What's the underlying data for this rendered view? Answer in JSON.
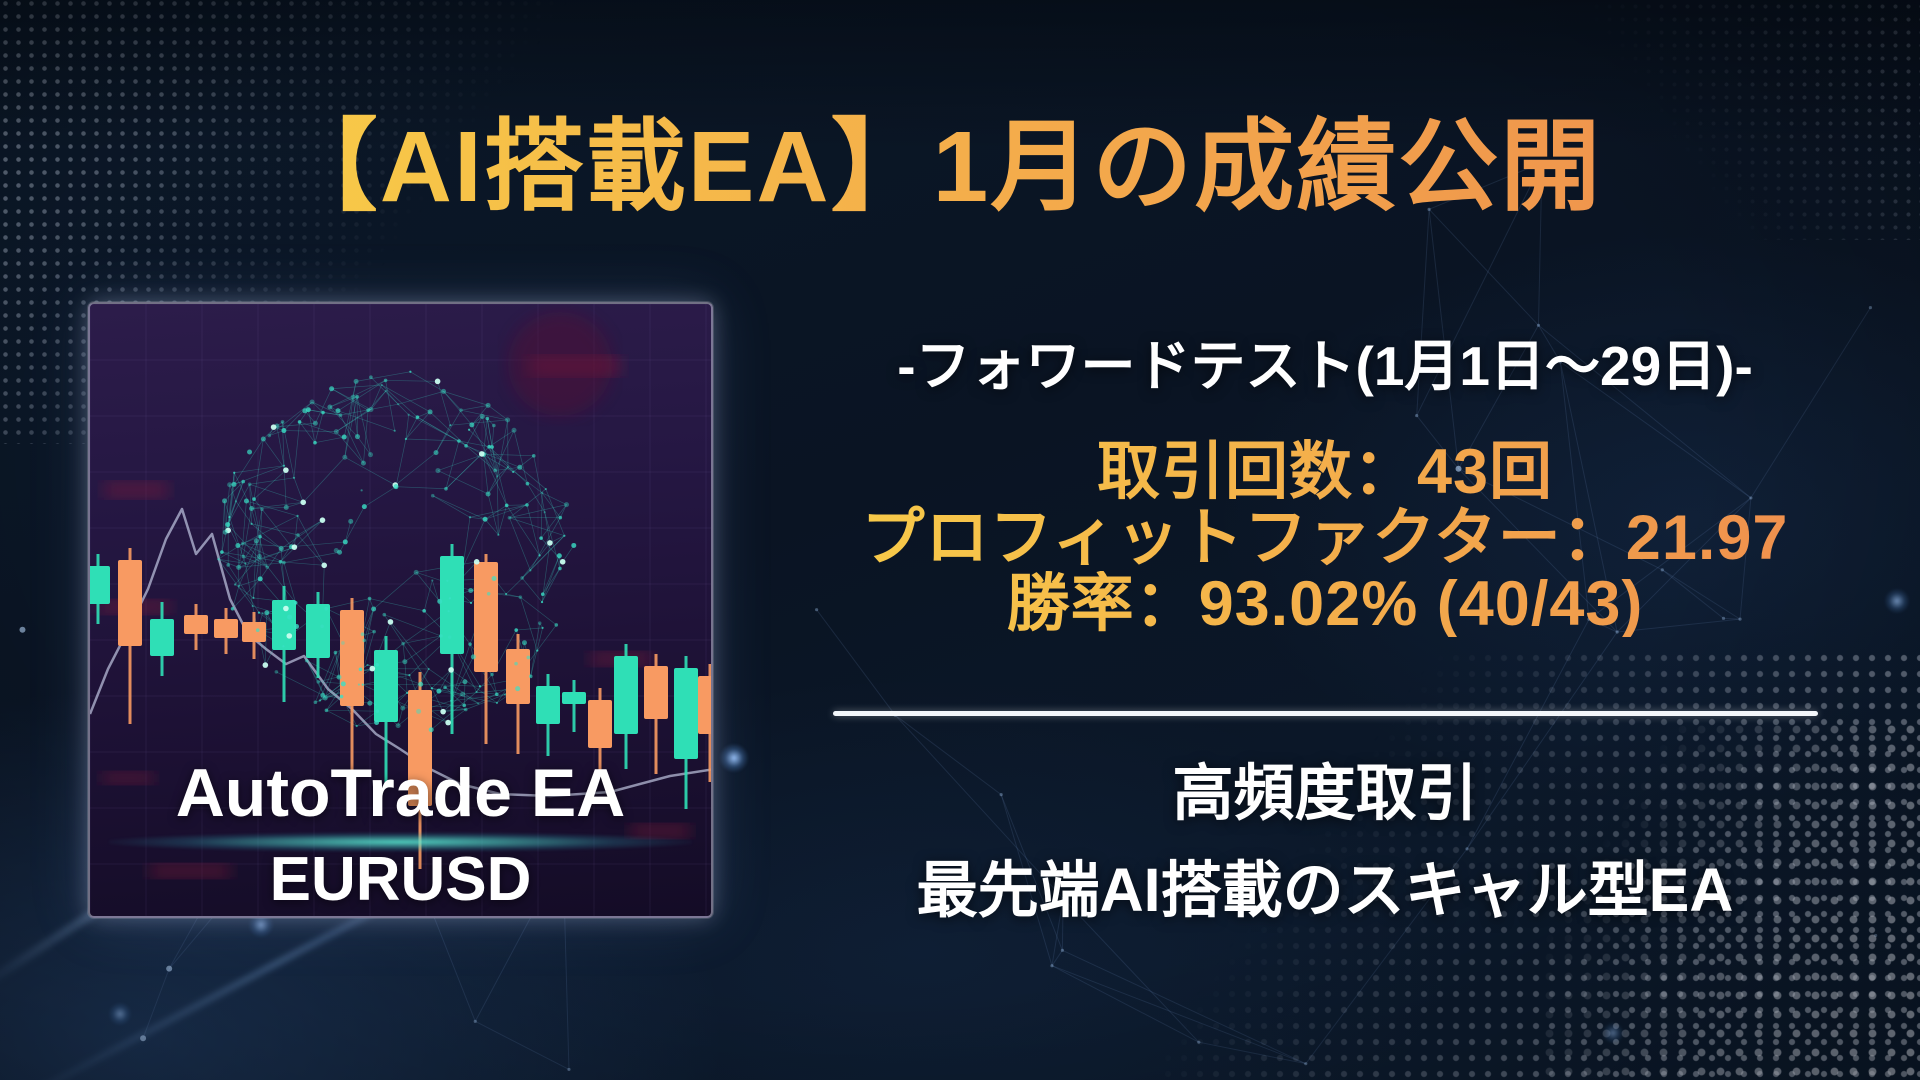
{
  "title": "【AI搭載EA】1月の成績公開",
  "card": {
    "name": "AutoTrade EA",
    "pair": "EURUSD",
    "line_points": "0,410 18,365 36,330 58,285 76,235 92,205 106,250 122,230 140,295 158,330 176,345 196,360 214,352 238,385 262,405 286,430 310,445 340,465 370,480 410,490 460,492 520,488 580,472 625,465",
    "candles": [
      [
        8,
        "g",
        250,
        262,
        300,
        320
      ],
      [
        40,
        "o",
        244,
        256,
        342,
        420
      ],
      [
        72,
        "g",
        298,
        315,
        352,
        372
      ],
      [
        106,
        "o",
        300,
        311,
        330,
        346
      ],
      [
        136,
        "o",
        304,
        315,
        334,
        350
      ],
      [
        164,
        "o",
        308,
        318,
        338,
        355
      ],
      [
        194,
        "g",
        282,
        296,
        346,
        398
      ],
      [
        228,
        "g",
        288,
        300,
        354,
        374
      ],
      [
        262,
        "o",
        294,
        306,
        402,
        468
      ],
      [
        296,
        "g",
        332,
        346,
        418,
        480
      ],
      [
        330,
        "o",
        368,
        386,
        502,
        565
      ],
      [
        362,
        "g",
        240,
        252,
        350,
        430
      ],
      [
        396,
        "o",
        250,
        258,
        368,
        440
      ],
      [
        428,
        "o",
        330,
        345,
        400,
        450
      ],
      [
        458,
        "g",
        370,
        382,
        420,
        452
      ],
      [
        484,
        "g",
        376,
        388,
        400,
        428
      ],
      [
        510,
        "o",
        384,
        396,
        444,
        472
      ],
      [
        536,
        "g",
        340,
        352,
        430,
        465
      ],
      [
        566,
        "o",
        350,
        362,
        415,
        470
      ],
      [
        596,
        "g",
        352,
        364,
        455,
        505
      ],
      [
        620,
        "o",
        360,
        372,
        430,
        478
      ]
    ]
  },
  "panel": {
    "subtitle": "-フォワードテスト(1月1日〜29日)-",
    "stats": [
      "取引回数：43回",
      "プロフィットファクター：21.97",
      "勝率：93.02% (40/43)"
    ],
    "footer_lines": [
      "高頻度取引",
      "最先端AI搭載のスキャル型EA"
    ]
  },
  "colors": {
    "title_gold": "#F8CC47",
    "title_orange": "#EF934D",
    "white_text": "#FFFFFF",
    "background_navy": "#0B1727",
    "card_purple": "#241743",
    "candle_up_teal": "#2FDFB6",
    "candle_down_orange": "#F89A62",
    "sphere_teal": "#3AE0C6"
  }
}
